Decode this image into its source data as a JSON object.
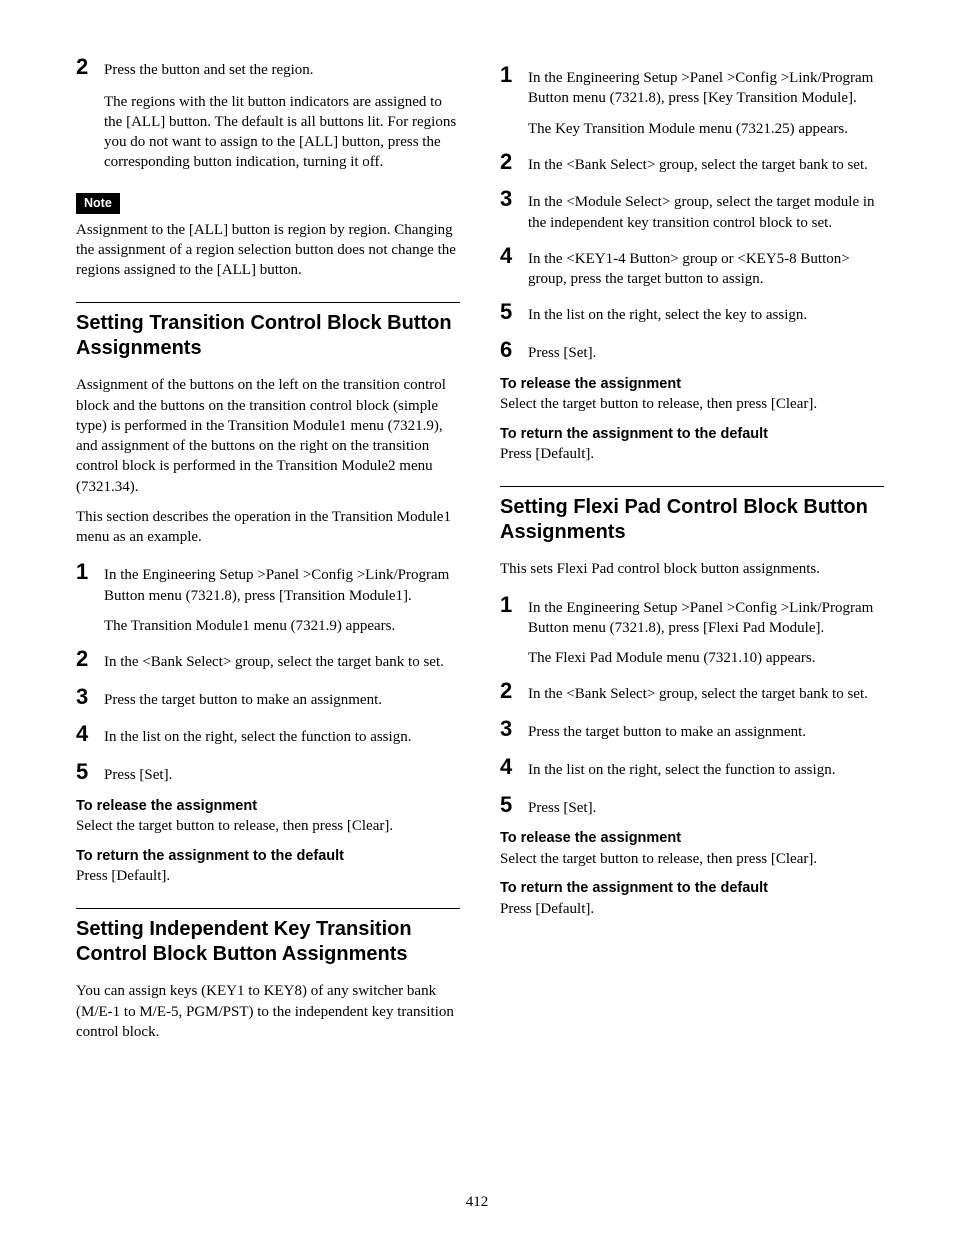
{
  "page_number": "412",
  "left": {
    "lead_step": {
      "num": "2",
      "text": "Press the button and set the region.",
      "sub": "The regions with the lit button indicators are assigned to the [ALL] button. The default is all buttons lit. For regions you do not want to assign to the [ALL] button, press the corresponding button indication, turning it off."
    },
    "note_label": "Note",
    "note_body": "Assignment to the [ALL] button is region by region. Changing the assignment of a region selection button does not change the regions assigned to the [ALL] button.",
    "sec1": {
      "title": "Setting Transition Control Block Button Assignments",
      "intro1": "Assignment of the buttons on the left on the transition control block and the buttons on the transition control block (simple type) is performed in the Transition Module1 menu (7321.9), and assignment of the buttons on the right on the transition control block is performed in the Transition Module2 menu (7321.34).",
      "intro2": "This section describes the operation in the Transition Module1 menu as an example.",
      "steps": [
        {
          "num": "1",
          "text": "In the Engineering Setup >Panel >Config >Link/Program Button menu (7321.8), press [Transition Module1].",
          "sub": "The Transition Module1 menu (7321.9) appears."
        },
        {
          "num": "2",
          "text": "In the <Bank Select> group, select the target bank to set."
        },
        {
          "num": "3",
          "text": "Press the target button to make an assignment."
        },
        {
          "num": "4",
          "text": "In the list on the right, select the function to assign."
        },
        {
          "num": "5",
          "text": "Press [Set]."
        }
      ],
      "release_h": "To release the assignment",
      "release_b": "Select the target button to release, then press [Clear].",
      "default_h": "To return the assignment to the default",
      "default_b": "Press [Default]."
    },
    "sec2": {
      "title": "Setting Independent Key Transition Control Block Button Assignments",
      "intro": "You can assign keys (KEY1 to KEY8) of any switcher bank (M/E-1 to M/E-5, PGM/PST) to the independent key transition control block."
    }
  },
  "right": {
    "steps": [
      {
        "num": "1",
        "text": "In the Engineering Setup >Panel >Config >Link/Program Button menu (7321.8), press [Key Transition Module].",
        "sub": "The Key Transition Module menu (7321.25) appears."
      },
      {
        "num": "2",
        "text": "In the <Bank Select> group, select the target bank to set."
      },
      {
        "num": "3",
        "text": "In the <Module Select> group, select the target module in the independent key transition control block to set."
      },
      {
        "num": "4",
        "text": "In the <KEY1-4 Button> group or <KEY5-8 Button> group, press the target button to assign."
      },
      {
        "num": "5",
        "text": "In the list on the right, select the key to assign."
      },
      {
        "num": "6",
        "text": "Press [Set]."
      }
    ],
    "release_h": "To release the assignment",
    "release_b": "Select the target button to release, then press [Clear].",
    "default_h": "To return the assignment to the default",
    "default_b": "Press [Default].",
    "sec3": {
      "title": "Setting Flexi Pad Control Block Button Assignments",
      "intro": "This sets Flexi Pad control block button assignments.",
      "steps": [
        {
          "num": "1",
          "text": "In the Engineering Setup >Panel >Config >Link/Program Button menu (7321.8), press [Flexi Pad Module].",
          "sub": "The Flexi Pad Module menu (7321.10) appears."
        },
        {
          "num": "2",
          "text": "In the <Bank Select> group, select the target bank to set."
        },
        {
          "num": "3",
          "text": "Press the target button to make an assignment."
        },
        {
          "num": "4",
          "text": "In the list on the right, select the function to assign."
        },
        {
          "num": "5",
          "text": "Press [Set]."
        }
      ],
      "release_h": "To release the assignment",
      "release_b": "Select the target button to release, then press [Clear].",
      "default_h": "To return the assignment to the default",
      "default_b": "Press [Default]."
    }
  }
}
